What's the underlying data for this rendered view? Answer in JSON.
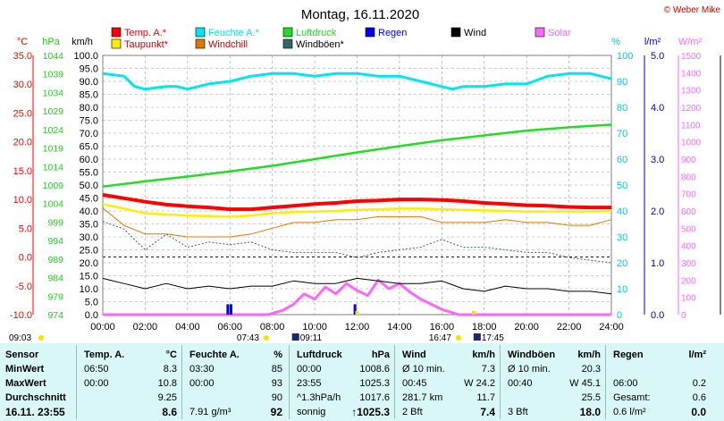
{
  "title": "Montag, 16.11.2020",
  "copyright": "© Weber Mike",
  "legend": [
    {
      "label": "Temp. A.*",
      "color": "#ff0000"
    },
    {
      "label": "Feuchte A.*",
      "color": "#00e5ee"
    },
    {
      "label": "Luftdruck",
      "color": "#22dd22"
    },
    {
      "label": "Regen",
      "color": "#0000ee"
    },
    {
      "label": "Wind",
      "color": "#000000"
    },
    {
      "label": "Solar",
      "color": "#ff66ff"
    },
    {
      "label": "Taupunkt*",
      "color": "#ffee00"
    },
    {
      "label": "Windchill",
      "color": "#e07800"
    },
    {
      "label": "Windböen*",
      "color": "#336666"
    }
  ],
  "units": {
    "temp": "°C",
    "press": "hPa",
    "wind": "km/h",
    "hum": "%",
    "rain": "l/m²",
    "solar": "W/m²"
  },
  "sun": {
    "sunrise": "07:43",
    "sunset": "16:47",
    "moonrise": "09:11",
    "moonset": "17:45",
    "left_time": "09:03"
  },
  "chart_data": {
    "type": "line",
    "x_label_ticks": [
      "00:00",
      "02:00",
      "04:00",
      "06:00",
      "08:00",
      "10:00",
      "12:00",
      "14:00",
      "16:00",
      "18:00",
      "20:00",
      "22:00",
      "24:00"
    ],
    "axes": {
      "temp": {
        "min": -10,
        "max": 35,
        "ticks": [
          "35.0",
          "30.0",
          "25.0",
          "20.0",
          "15.0",
          "10.0",
          "5.0",
          "0.0",
          "-5.0",
          "-10.0"
        ]
      },
      "press": {
        "ticks": [
          "1044",
          "1039",
          "1034",
          "1029",
          "1024",
          "1019",
          "1014",
          "1009",
          "1004",
          "999",
          "994",
          "989",
          "984",
          "979",
          "974"
        ]
      },
      "wind": {
        "min": 0,
        "max": 100,
        "ticks": [
          "100.0",
          "95.0",
          "90.0",
          "85.0",
          "80.0",
          "75.0",
          "70.0",
          "65.0",
          "60.0",
          "55.0",
          "50.0",
          "45.0",
          "40.0",
          "35.0",
          "30.0",
          "25.0",
          "20.0",
          "15.0",
          "10.0",
          "5.0",
          "0.0"
        ]
      },
      "hum": {
        "min": 0,
        "max": 100,
        "ticks": [
          "100",
          "90",
          "80",
          "70",
          "60",
          "50",
          "40",
          "30",
          "20",
          "10",
          "0"
        ]
      },
      "rain": {
        "min": 0,
        "max": 5,
        "ticks": [
          "5.0",
          "4.0",
          "3.0",
          "2.0",
          "1.0",
          "0.0"
        ]
      },
      "solar": {
        "min": 0,
        "max": 1500,
        "ticks": [
          "1500",
          "1400",
          "1300",
          "1200",
          "1100",
          "1000",
          "900",
          "800",
          "700",
          "600",
          "500",
          "400",
          "300",
          "200",
          "100",
          "0"
        ]
      }
    },
    "series": [
      {
        "name": "Temp. A.*",
        "axis": "temp",
        "x": [
          0,
          1,
          2,
          3,
          4,
          5,
          6,
          7,
          8,
          9,
          10,
          11,
          12,
          13,
          14,
          15,
          16,
          17,
          18,
          19,
          20,
          21,
          22,
          23,
          24
        ],
        "values": [
          10.8,
          10.2,
          9.6,
          9.1,
          8.8,
          8.6,
          8.3,
          8.3,
          8.6,
          8.9,
          9.2,
          9.4,
          9.7,
          9.8,
          10,
          10,
          9.9,
          9.7,
          9.4,
          9.2,
          9,
          8.9,
          8.7,
          8.6,
          8.6
        ]
      },
      {
        "name": "Taupunkt*",
        "axis": "temp",
        "x": [
          0,
          1,
          2,
          3,
          4,
          5,
          6,
          7,
          8,
          9,
          10,
          11,
          12,
          13,
          14,
          15,
          16,
          17,
          18,
          19,
          20,
          21,
          22,
          23,
          24
        ],
        "values": [
          9.2,
          8.4,
          7.6,
          7.4,
          7.2,
          7.1,
          7.0,
          7.2,
          7.6,
          7.8,
          7.9,
          8.0,
          8.2,
          8.3,
          8.4,
          8.4,
          8.3,
          8.2,
          8.1,
          8.0,
          7.9,
          7.9,
          7.9,
          7.9,
          8.0
        ]
      },
      {
        "name": "Feuchte A.*",
        "axis": "hum",
        "x": [
          0,
          1,
          1.5,
          2,
          3,
          3.5,
          4,
          5,
          6,
          7,
          8,
          9,
          10,
          11,
          12,
          13,
          14,
          15,
          16,
          16.5,
          17,
          18,
          19,
          20,
          21,
          22,
          23,
          24
        ],
        "values": [
          93,
          92,
          88,
          87,
          88,
          88,
          87,
          89,
          90,
          92,
          93,
          93,
          92,
          93,
          93,
          92,
          92,
          90,
          88,
          87,
          88,
          88,
          89,
          89,
          92,
          93,
          93,
          91
        ]
      },
      {
        "name": "Luftdruck",
        "axis": "press",
        "x": [
          0,
          2,
          4,
          6,
          8,
          10,
          12,
          14,
          16,
          18,
          20,
          22,
          24
        ],
        "values": [
          1008.6,
          1010,
          1011.3,
          1012.7,
          1014.2,
          1016,
          1017.8,
          1019.5,
          1021.1,
          1022.4,
          1023.7,
          1024.6,
          1025.3
        ]
      },
      {
        "name": "Solar",
        "axis": "solar",
        "x": [
          0,
          7.8,
          8.5,
          9,
          9.5,
          10,
          10.5,
          11,
          11.5,
          12,
          12.5,
          13,
          13.5,
          14,
          14.5,
          15,
          15.5,
          16,
          16.8,
          24
        ],
        "values": [
          0,
          0,
          25,
          60,
          120,
          90,
          160,
          120,
          180,
          140,
          110,
          200,
          150,
          180,
          130,
          90,
          60,
          30,
          0,
          0
        ]
      },
      {
        "name": "Windchill",
        "axis": "temp",
        "x": [
          0,
          1,
          2,
          3,
          4,
          5,
          6,
          7,
          8,
          9,
          10,
          11,
          12,
          13,
          14,
          15,
          16,
          17,
          18,
          19,
          20,
          21,
          22,
          23,
          24
        ],
        "values": [
          8.5,
          5.5,
          4,
          4,
          3.5,
          3.5,
          3.5,
          4,
          5,
          6,
          6,
          6.5,
          6.5,
          7,
          7,
          7,
          6,
          6,
          6,
          6.5,
          6,
          6,
          5.5,
          5.5,
          6.5
        ]
      },
      {
        "name": "Windböen*",
        "axis": "wind",
        "x": [
          0,
          1,
          2,
          3,
          4,
          5,
          6,
          7,
          8,
          9,
          10,
          11,
          12,
          13,
          14,
          15,
          16,
          17,
          18,
          19,
          20,
          21,
          22,
          23,
          24
        ],
        "values": [
          36,
          33,
          25,
          31,
          26,
          28,
          27,
          28,
          25,
          24,
          24,
          24,
          22,
          24,
          25,
          26,
          29,
          26,
          26,
          25,
          24,
          24,
          22,
          21,
          20
        ]
      },
      {
        "name": "Wind",
        "axis": "wind",
        "x": [
          0,
          1,
          2,
          3,
          4,
          5,
          6,
          7,
          8,
          9,
          10,
          11,
          12,
          13,
          14,
          15,
          16,
          17,
          18,
          19,
          20,
          21,
          22,
          23,
          24
        ],
        "values": [
          14,
          12,
          10,
          12,
          10,
          11,
          10,
          11,
          11,
          13,
          12,
          12,
          14,
          13,
          12,
          12,
          13,
          10,
          9,
          11,
          10,
          10,
          9,
          9,
          8
        ]
      }
    ],
    "rain_marks": {
      "x": [
        5.9,
        6.05,
        11.9
      ],
      "values": [
        0.2,
        0.2,
        0.2
      ]
    }
  },
  "stats": {
    "row_labels": [
      "Sensor",
      "MinWert",
      "MaxWert",
      "Durchschnitt",
      "16.11. 23:55"
    ],
    "cols": [
      {
        "title": "Temp. A.",
        "unit": "°C",
        "rows": [
          [
            "06:50",
            "8.3"
          ],
          [
            "00:00",
            "10.8"
          ],
          [
            "",
            "9.25"
          ],
          [
            "",
            "8.6"
          ]
        ]
      },
      {
        "title": "Feuchte A.",
        "unit": "%",
        "rows": [
          [
            "03:30",
            "85"
          ],
          [
            "00:00",
            "93"
          ],
          [
            "",
            "90"
          ],
          [
            "7.91 g/m³",
            "92"
          ]
        ]
      },
      {
        "title": "Luftdruck",
        "unit": "hPa",
        "rows": [
          [
            "00:00",
            "1008.6"
          ],
          [
            "23:55",
            "1025.3"
          ],
          [
            "^1.3hPa/h",
            "1017.6"
          ],
          [
            "sonnig",
            "↑1025.3"
          ]
        ]
      },
      {
        "title": "Wind",
        "unit": "km/h",
        "rows": [
          [
            "Ø 10 min.",
            "7.3"
          ],
          [
            "00:45",
            "W 24.2"
          ],
          [
            "281.7 km",
            "11.7"
          ],
          [
            "2 Bft",
            "7.4"
          ]
        ]
      },
      {
        "title": "Windböen",
        "unit": "km/h",
        "rows": [
          [
            "Ø 10 min.",
            "20.3"
          ],
          [
            "00:40",
            "W 45.1"
          ],
          [
            "",
            "25.5"
          ],
          [
            "3 Bft",
            "18.0"
          ]
        ]
      },
      {
        "title": "Regen",
        "unit": "l/m²",
        "rows": [
          [
            "",
            ""
          ],
          [
            "06:00",
            "0.2"
          ],
          [
            "Gesamt:",
            "0.6"
          ],
          [
            "0.6 l/m²",
            "0.0"
          ]
        ]
      }
    ]
  }
}
